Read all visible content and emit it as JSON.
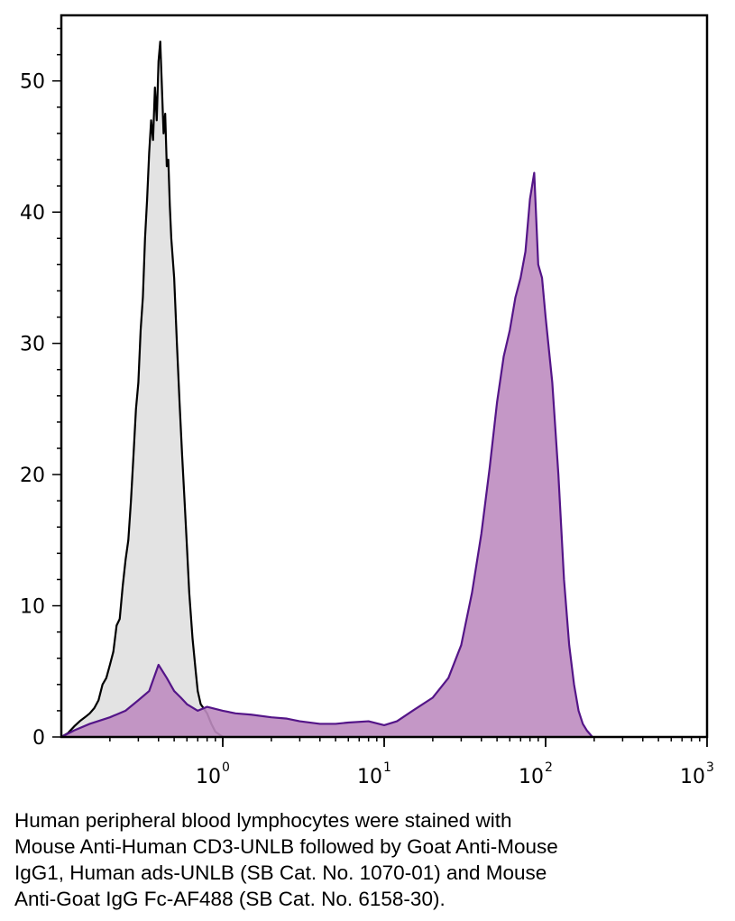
{
  "chart_data": {
    "type": "area",
    "x_scale": "log",
    "xlim": [
      0.1,
      1000
    ],
    "ylim": [
      0,
      55
    ],
    "x_ticks": [
      {
        "value": 1,
        "base": "10",
        "exp": "0"
      },
      {
        "value": 10,
        "base": "10",
        "exp": "1"
      },
      {
        "value": 100,
        "base": "10",
        "exp": "2"
      },
      {
        "value": 1000,
        "base": "10",
        "exp": "3"
      }
    ],
    "y_ticks": [
      0,
      10,
      20,
      30,
      40,
      50
    ],
    "grid": false,
    "series": [
      {
        "fill": "#e3e3e3",
        "stroke": "#000000",
        "points": [
          [
            0.1,
            0
          ],
          [
            0.11,
            0.3
          ],
          [
            0.12,
            0.8
          ],
          [
            0.13,
            1.2
          ],
          [
            0.14,
            1.5
          ],
          [
            0.15,
            1.8
          ],
          [
            0.16,
            2.2
          ],
          [
            0.17,
            2.8
          ],
          [
            0.18,
            4.0
          ],
          [
            0.19,
            4.5
          ],
          [
            0.2,
            5.5
          ],
          [
            0.21,
            6.5
          ],
          [
            0.22,
            8.5
          ],
          [
            0.23,
            9.0
          ],
          [
            0.24,
            11.5
          ],
          [
            0.25,
            13.5
          ],
          [
            0.26,
            15.0
          ],
          [
            0.27,
            18.0
          ],
          [
            0.28,
            21.5
          ],
          [
            0.29,
            25.0
          ],
          [
            0.3,
            27.0
          ],
          [
            0.31,
            31.0
          ],
          [
            0.32,
            33.5
          ],
          [
            0.33,
            38.0
          ],
          [
            0.34,
            41.0
          ],
          [
            0.35,
            44.5
          ],
          [
            0.36,
            47.0
          ],
          [
            0.37,
            45.5
          ],
          [
            0.38,
            49.5
          ],
          [
            0.39,
            47.0
          ],
          [
            0.4,
            51.5
          ],
          [
            0.41,
            53.0
          ],
          [
            0.42,
            49.5
          ],
          [
            0.43,
            46.0
          ],
          [
            0.44,
            47.5
          ],
          [
            0.45,
            43.5
          ],
          [
            0.46,
            44.0
          ],
          [
            0.47,
            40.5
          ],
          [
            0.48,
            38.0
          ],
          [
            0.5,
            35.0
          ],
          [
            0.52,
            30.0
          ],
          [
            0.54,
            25.5
          ],
          [
            0.56,
            21.5
          ],
          [
            0.58,
            18.0
          ],
          [
            0.6,
            14.5
          ],
          [
            0.62,
            11.0
          ],
          [
            0.65,
            7.5
          ],
          [
            0.68,
            5.0
          ],
          [
            0.7,
            3.5
          ],
          [
            0.73,
            2.5
          ],
          [
            0.76,
            2.2
          ],
          [
            0.8,
            1.8
          ],
          [
            0.85,
            1.0
          ],
          [
            0.9,
            0.4
          ],
          [
            1.0,
            0
          ]
        ]
      },
      {
        "fill": "#be8cc0",
        "stroke": "#541588",
        "points": [
          [
            0.1,
            0
          ],
          [
            0.12,
            0.5
          ],
          [
            0.15,
            1.0
          ],
          [
            0.2,
            1.5
          ],
          [
            0.25,
            2.0
          ],
          [
            0.3,
            2.8
          ],
          [
            0.35,
            3.5
          ],
          [
            0.4,
            5.5
          ],
          [
            0.45,
            4.5
          ],
          [
            0.5,
            3.5
          ],
          [
            0.55,
            3.0
          ],
          [
            0.6,
            2.5
          ],
          [
            0.7,
            2.0
          ],
          [
            0.8,
            2.3
          ],
          [
            1.0,
            2.0
          ],
          [
            1.2,
            1.8
          ],
          [
            1.5,
            1.7
          ],
          [
            2.0,
            1.5
          ],
          [
            2.5,
            1.4
          ],
          [
            3.0,
            1.2
          ],
          [
            4.0,
            1.0
          ],
          [
            5.0,
            1.0
          ],
          [
            6.0,
            1.1
          ],
          [
            8.0,
            1.2
          ],
          [
            10,
            0.9
          ],
          [
            12,
            1.2
          ],
          [
            15,
            2.0
          ],
          [
            20,
            3.0
          ],
          [
            25,
            4.5
          ],
          [
            30,
            7.0
          ],
          [
            35,
            11.0
          ],
          [
            40,
            15.5
          ],
          [
            45,
            20.5
          ],
          [
            50,
            25.5
          ],
          [
            55,
            29.0
          ],
          [
            60,
            31.0
          ],
          [
            65,
            33.5
          ],
          [
            70,
            35.0
          ],
          [
            75,
            37.0
          ],
          [
            80,
            41.0
          ],
          [
            85,
            43.0
          ],
          [
            90,
            36.0
          ],
          [
            95,
            35.0
          ],
          [
            100,
            32.0
          ],
          [
            110,
            27.0
          ],
          [
            120,
            20.0
          ],
          [
            130,
            12.0
          ],
          [
            140,
            7.0
          ],
          [
            150,
            4.0
          ],
          [
            160,
            2.0
          ],
          [
            170,
            1.0
          ],
          [
            180,
            0.5
          ],
          [
            195,
            0
          ]
        ]
      }
    ]
  },
  "caption": {
    "lines": [
      "Human peripheral blood lymphocytes were stained with",
      "Mouse Anti-Human CD3-UNLB followed by Goat Anti-Mouse",
      "IgG1, Human ads-UNLB (SB Cat. No. 1070-01) and Mouse",
      "Anti-Goat IgG Fc-AF488 (SB Cat. No. 6158-30)."
    ]
  }
}
